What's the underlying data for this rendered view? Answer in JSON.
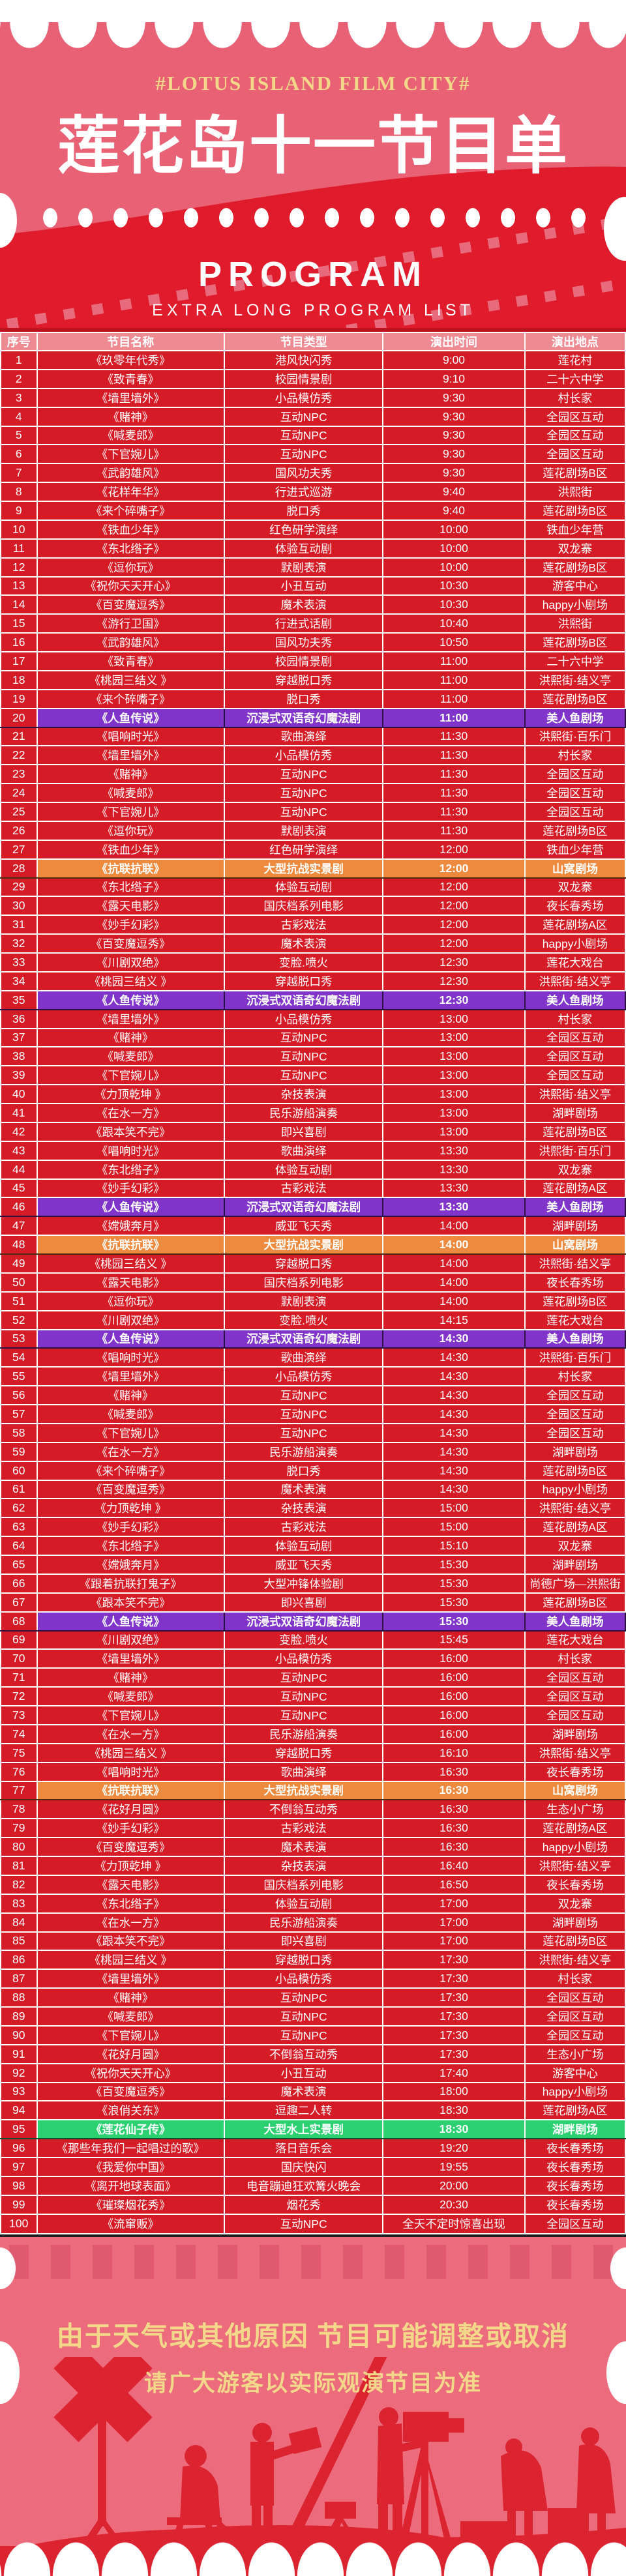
{
  "header": {
    "tagline": "#LOTUS ISLAND FILM CITY#",
    "title": "莲花岛十一节目单",
    "program_word": "PROGRAM",
    "subtitle": "EXTRA LONG PROGRAM LIST"
  },
  "table": {
    "columns": [
      "序号",
      "节目名称",
      "节目类型",
      "演出时间",
      "演出地点"
    ],
    "rows": [
      {
        "no": "1",
        "name": "《玖零年代秀》",
        "type": "港风快闪秀",
        "time": "9:00",
        "venue": "莲花村",
        "highlight": "none"
      },
      {
        "no": "2",
        "name": "《致青春》",
        "type": "校园情景剧",
        "time": "9:10",
        "venue": "二十六中学",
        "highlight": "none"
      },
      {
        "no": "3",
        "name": "《墙里墙外》",
        "type": "小品模仿秀",
        "time": "9:30",
        "venue": "村长家",
        "highlight": "none"
      },
      {
        "no": "4",
        "name": "《赌神》",
        "type": "互动NPC",
        "time": "9:30",
        "venue": "全园区互动",
        "highlight": "none"
      },
      {
        "no": "5",
        "name": "《喊麦郎》",
        "type": "互动NPC",
        "time": "9:30",
        "venue": "全园区互动",
        "highlight": "none"
      },
      {
        "no": "6",
        "name": "《下官婉儿》",
        "type": "互动NPC",
        "time": "9:30",
        "venue": "全园区互动",
        "highlight": "none"
      },
      {
        "no": "7",
        "name": "《武韵雄风》",
        "type": "国风功夫秀",
        "time": "9:30",
        "venue": "莲花剧场B区",
        "highlight": "none"
      },
      {
        "no": "8",
        "name": "《花样年华》",
        "type": "行进式巡游",
        "time": "9:40",
        "venue": "洪熙街",
        "highlight": "none"
      },
      {
        "no": "9",
        "name": "《来个碎嘴子》",
        "type": "脱口秀",
        "time": "9:40",
        "venue": "莲花剧场B区",
        "highlight": "none"
      },
      {
        "no": "10",
        "name": "《铁血少年》",
        "type": "红色研学演绎",
        "time": "10:00",
        "venue": "铁血少年营",
        "highlight": "none"
      },
      {
        "no": "11",
        "name": "《东北绺子》",
        "type": "体验互动剧",
        "time": "10:00",
        "venue": "双龙寨",
        "highlight": "none"
      },
      {
        "no": "12",
        "name": "《逗你玩》",
        "type": "默剧表演",
        "time": "10:00",
        "venue": "莲花剧场B区",
        "highlight": "none"
      },
      {
        "no": "13",
        "name": "《祝你天天开心》",
        "type": "小丑互动",
        "time": "10:30",
        "venue": "游客中心",
        "highlight": "none"
      },
      {
        "no": "14",
        "name": "《百变魔逗秀》",
        "type": "魔术表演",
        "time": "10:30",
        "venue": "happy小剧场",
        "highlight": "none"
      },
      {
        "no": "15",
        "name": "《游行卫国》",
        "type": "行进式话剧",
        "time": "10:40",
        "venue": "洪熙街",
        "highlight": "none"
      },
      {
        "no": "16",
        "name": "《武韵雄风》",
        "type": "国风功夫秀",
        "time": "10:50",
        "venue": "莲花剧场B区",
        "highlight": "none"
      },
      {
        "no": "17",
        "name": "《致青春》",
        "type": "校园情景剧",
        "time": "11:00",
        "venue": "二十六中学",
        "highlight": "none"
      },
      {
        "no": "18",
        "name": "《桃园三结义 》",
        "type": "穿越脱口秀",
        "time": "11:00",
        "venue": "洪熙街·结义亭",
        "highlight": "none"
      },
      {
        "no": "19",
        "name": "《来个碎嘴子》",
        "type": "脱口秀",
        "time": "11:00",
        "venue": "莲花剧场B区",
        "highlight": "none"
      },
      {
        "no": "20",
        "name": "《人鱼传说》",
        "type": "沉浸式双语奇幻魔法剧",
        "time": "11:00",
        "venue": "美人鱼剧场",
        "highlight": "purple"
      },
      {
        "no": "21",
        "name": "《唱响时光》",
        "type": "歌曲演绎",
        "time": "11:30",
        "venue": "洪熙街·百乐门",
        "highlight": "none"
      },
      {
        "no": "22",
        "name": "《墙里墙外》",
        "type": "小品模仿秀",
        "time": "11:30",
        "venue": "村长家",
        "highlight": "none"
      },
      {
        "no": "23",
        "name": "《赌神》",
        "type": "互动NPC",
        "time": "11:30",
        "venue": "全园区互动",
        "highlight": "none"
      },
      {
        "no": "24",
        "name": "《喊麦郎》",
        "type": "互动NPC",
        "time": "11:30",
        "venue": "全园区互动",
        "highlight": "none"
      },
      {
        "no": "25",
        "name": "《下官婉儿》",
        "type": "互动NPC",
        "time": "11:30",
        "venue": "全园区互动",
        "highlight": "none"
      },
      {
        "no": "26",
        "name": "《逗你玩》",
        "type": "默剧表演",
        "time": "11:30",
        "venue": "莲花剧场B区",
        "highlight": "none"
      },
      {
        "no": "27",
        "name": "《铁血少年》",
        "type": "红色研学演绎",
        "time": "12:00",
        "venue": "铁血少年营",
        "highlight": "none"
      },
      {
        "no": "28",
        "name": "《抗联抗联》",
        "type": "大型抗战实景剧",
        "time": "12:00",
        "venue": "山窝剧场",
        "highlight": "orange"
      },
      {
        "no": "29",
        "name": "《东北绺子》",
        "type": "体验互动剧",
        "time": "12:00",
        "venue": "双龙寨",
        "highlight": "none"
      },
      {
        "no": "30",
        "name": "《露天电影》",
        "type": "国庆档系列电影",
        "time": "12:00",
        "venue": "夜长春秀场",
        "highlight": "none"
      },
      {
        "no": "31",
        "name": "《妙手幻彩》",
        "type": "古彩戏法",
        "time": "12:00",
        "venue": "莲花剧场A区",
        "highlight": "none"
      },
      {
        "no": "32",
        "name": "《百变魔逗秀》",
        "type": "魔术表演",
        "time": "12:00",
        "venue": "happy小剧场",
        "highlight": "none"
      },
      {
        "no": "33",
        "name": "《川剧双绝》",
        "type": "变脸.喷火",
        "time": "12:30",
        "venue": "莲花大戏台",
        "highlight": "none"
      },
      {
        "no": "34",
        "name": "《桃园三结义 》",
        "type": "穿越脱口秀",
        "time": "12:30",
        "venue": "洪熙街·结义亭",
        "highlight": "none"
      },
      {
        "no": "35",
        "name": "《人鱼传说》",
        "type": "沉浸式双语奇幻魔法剧",
        "time": "12:30",
        "venue": "美人鱼剧场",
        "highlight": "purple"
      },
      {
        "no": "36",
        "name": "《墙里墙外》",
        "type": "小品模仿秀",
        "time": "13:00",
        "venue": "村长家",
        "highlight": "none"
      },
      {
        "no": "37",
        "name": "《赌神》",
        "type": "互动NPC",
        "time": "13:00",
        "venue": "全园区互动",
        "highlight": "none"
      },
      {
        "no": "38",
        "name": "《喊麦郎》",
        "type": "互动NPC",
        "time": "13:00",
        "venue": "全园区互动",
        "highlight": "none"
      },
      {
        "no": "39",
        "name": "《下官婉儿》",
        "type": "互动NPC",
        "time": "13:00",
        "venue": "全园区互动",
        "highlight": "none"
      },
      {
        "no": "40",
        "name": "《力顶乾坤 》",
        "type": "杂技表演",
        "time": "13:00",
        "venue": "洪熙街·结义亭",
        "highlight": "none"
      },
      {
        "no": "41",
        "name": "《在水一方》",
        "type": "民乐游船演奏",
        "time": "13:00",
        "venue": "湖畔剧场",
        "highlight": "none"
      },
      {
        "no": "42",
        "name": "《跟本笑不完》",
        "type": "即兴喜剧",
        "time": "13:00",
        "venue": "莲花剧场B区",
        "highlight": "none"
      },
      {
        "no": "43",
        "name": "《唱响时光》",
        "type": "歌曲演绎",
        "time": "13:30",
        "venue": "洪熙街·百乐门",
        "highlight": "none"
      },
      {
        "no": "44",
        "name": "《东北绺子》",
        "type": "体验互动剧",
        "time": "13:30",
        "venue": "双龙寨",
        "highlight": "none"
      },
      {
        "no": "45",
        "name": "《妙手幻彩》",
        "type": "古彩戏法",
        "time": "13:30",
        "venue": "莲花剧场A区",
        "highlight": "none"
      },
      {
        "no": "46",
        "name": "《人鱼传说》",
        "type": "沉浸式双语奇幻魔法剧",
        "time": "13:30",
        "venue": "美人鱼剧场",
        "highlight": "purple"
      },
      {
        "no": "47",
        "name": "《嫦娥奔月》",
        "type": "威亚飞天秀",
        "time": "14:00",
        "venue": "湖畔剧场",
        "highlight": "none"
      },
      {
        "no": "48",
        "name": "《抗联抗联》",
        "type": "大型抗战实景剧",
        "time": "14:00",
        "venue": "山窝剧场",
        "highlight": "orange"
      },
      {
        "no": "49",
        "name": "《桃园三结义 》",
        "type": "穿越脱口秀",
        "time": "14:00",
        "venue": "洪熙街·结义亭",
        "highlight": "none"
      },
      {
        "no": "50",
        "name": "《露天电影》",
        "type": "国庆档系列电影",
        "time": "14:00",
        "venue": "夜长春秀场",
        "highlight": "none"
      },
      {
        "no": "51",
        "name": "《逗你玩》",
        "type": "默剧表演",
        "time": "14:00",
        "venue": "莲花剧场B区",
        "highlight": "none"
      },
      {
        "no": "52",
        "name": "《川剧双绝》",
        "type": "变脸.喷火",
        "time": "14:15",
        "venue": "莲花大戏台",
        "highlight": "none"
      },
      {
        "no": "53",
        "name": "《人鱼传说》",
        "type": "沉浸式双语奇幻魔法剧",
        "time": "14:30",
        "venue": "美人鱼剧场",
        "highlight": "purple"
      },
      {
        "no": "54",
        "name": "《唱响时光》",
        "type": "歌曲演绎",
        "time": "14:30",
        "venue": "洪熙街·百乐门",
        "highlight": "none"
      },
      {
        "no": "55",
        "name": "《墙里墙外》",
        "type": "小品模仿秀",
        "time": "14:30",
        "venue": "村长家",
        "highlight": "none"
      },
      {
        "no": "56",
        "name": "《赌神》",
        "type": "互动NPC",
        "time": "14:30",
        "venue": "全园区互动",
        "highlight": "none"
      },
      {
        "no": "57",
        "name": "《喊麦郎》",
        "type": "互动NPC",
        "time": "14:30",
        "venue": "全园区互动",
        "highlight": "none"
      },
      {
        "no": "58",
        "name": "《下官婉儿》",
        "type": "互动NPC",
        "time": "14:30",
        "venue": "全园区互动",
        "highlight": "none"
      },
      {
        "no": "59",
        "name": "《在水一方》",
        "type": "民乐游船演奏",
        "time": "14:30",
        "venue": "湖畔剧场",
        "highlight": "none"
      },
      {
        "no": "60",
        "name": "《来个碎嘴子》",
        "type": "脱口秀",
        "time": "14:30",
        "venue": "莲花剧场B区",
        "highlight": "none"
      },
      {
        "no": "61",
        "name": "《百变魔逗秀》",
        "type": "魔术表演",
        "time": "14:30",
        "venue": "happy小剧场",
        "highlight": "none"
      },
      {
        "no": "62",
        "name": "《力顶乾坤 》",
        "type": "杂技表演",
        "time": "15:00",
        "venue": "洪熙街·结义亭",
        "highlight": "none"
      },
      {
        "no": "63",
        "name": "《妙手幻彩》",
        "type": "古彩戏法",
        "time": "15:00",
        "venue": "莲花剧场A区",
        "highlight": "none"
      },
      {
        "no": "64",
        "name": "《东北绺子》",
        "type": "体验互动剧",
        "time": "15:10",
        "venue": "双龙寨",
        "highlight": "none"
      },
      {
        "no": "65",
        "name": "《嫦娥奔月》",
        "type": "威亚飞天秀",
        "time": "15:30",
        "venue": "湖畔剧场",
        "highlight": "none"
      },
      {
        "no": "66",
        "name": "《跟着抗联打鬼子》",
        "type": "大型冲锋体验剧",
        "time": "15:30",
        "venue": "尚德广场—洪熙街",
        "highlight": "none"
      },
      {
        "no": "67",
        "name": "《跟本笑不完》",
        "type": "即兴喜剧",
        "time": "15:30",
        "venue": "莲花剧场B区",
        "highlight": "none"
      },
      {
        "no": "68",
        "name": "《人鱼传说》",
        "type": "沉浸式双语奇幻魔法剧",
        "time": "15:30",
        "venue": "美人鱼剧场",
        "highlight": "purple"
      },
      {
        "no": "69",
        "name": "《川剧双绝》",
        "type": "变脸.喷火",
        "time": "15:45",
        "venue": "莲花大戏台",
        "highlight": "none"
      },
      {
        "no": "70",
        "name": "《墙里墙外》",
        "type": "小品模仿秀",
        "time": "16:00",
        "venue": "村长家",
        "highlight": "none"
      },
      {
        "no": "71",
        "name": "《赌神》",
        "type": "互动NPC",
        "time": "16:00",
        "venue": "全园区互动",
        "highlight": "none"
      },
      {
        "no": "72",
        "name": "《喊麦郎》",
        "type": "互动NPC",
        "time": "16:00",
        "venue": "全园区互动",
        "highlight": "none"
      },
      {
        "no": "73",
        "name": "《下官婉儿》",
        "type": "互动NPC",
        "time": "16:00",
        "venue": "全园区互动",
        "highlight": "none"
      },
      {
        "no": "74",
        "name": "《在水一方》",
        "type": "民乐游船演奏",
        "time": "16:00",
        "venue": "湖畔剧场",
        "highlight": "none"
      },
      {
        "no": "75",
        "name": "《桃园三结义 》",
        "type": "穿越脱口秀",
        "time": "16:10",
        "venue": "洪熙街·结义亭",
        "highlight": "none"
      },
      {
        "no": "76",
        "name": "《唱响时光》",
        "type": "歌曲演绎",
        "time": "16:30",
        "venue": "夜长春秀场",
        "highlight": "none"
      },
      {
        "no": "77",
        "name": "《抗联抗联》",
        "type": "大型抗战实景剧",
        "time": "16:30",
        "venue": "山窝剧场",
        "highlight": "orange"
      },
      {
        "no": "78",
        "name": "《花好月圆》",
        "type": "不倒翁互动秀",
        "time": "16:30",
        "venue": "生态小广场",
        "highlight": "none"
      },
      {
        "no": "79",
        "name": "《妙手幻彩》",
        "type": "古彩戏法",
        "time": "16:30",
        "venue": "莲花剧场A区",
        "highlight": "none"
      },
      {
        "no": "80",
        "name": "《百变魔逗秀》",
        "type": "魔术表演",
        "time": "16:30",
        "venue": "happy小剧场",
        "highlight": "none"
      },
      {
        "no": "81",
        "name": "《力顶乾坤 》",
        "type": "杂技表演",
        "time": "16:40",
        "venue": "洪熙街·结义亭",
        "highlight": "none"
      },
      {
        "no": "82",
        "name": "《露天电影》",
        "type": "国庆档系列电影",
        "time": "16:50",
        "venue": "夜长春秀场",
        "highlight": "none"
      },
      {
        "no": "83",
        "name": "《东北绺子》",
        "type": "体验互动剧",
        "time": "17:00",
        "venue": "双龙寨",
        "highlight": "none"
      },
      {
        "no": "84",
        "name": "《在水一方》",
        "type": "民乐游船演奏",
        "time": "17:00",
        "venue": "湖畔剧场",
        "highlight": "none"
      },
      {
        "no": "85",
        "name": "《跟本笑不完》",
        "type": "即兴喜剧",
        "time": "17:00",
        "venue": "莲花剧场B区",
        "highlight": "none"
      },
      {
        "no": "86",
        "name": "《桃园三结义 》",
        "type": "穿越脱口秀",
        "time": "17:30",
        "venue": "洪熙街·结义亭",
        "highlight": "none"
      },
      {
        "no": "87",
        "name": "《墙里墙外》",
        "type": "小品模仿秀",
        "time": "17:30",
        "venue": "村长家",
        "highlight": "none"
      },
      {
        "no": "88",
        "name": "《赌神》",
        "type": "互动NPC",
        "time": "17:30",
        "venue": "全园区互动",
        "highlight": "none"
      },
      {
        "no": "89",
        "name": "《喊麦郎》",
        "type": "互动NPC",
        "time": "17:30",
        "venue": "全园区互动",
        "highlight": "none"
      },
      {
        "no": "90",
        "name": "《下官婉儿》",
        "type": "互动NPC",
        "time": "17:30",
        "venue": "全园区互动",
        "highlight": "none"
      },
      {
        "no": "91",
        "name": "《花好月圆》",
        "type": "不倒翁互动秀",
        "time": "17:30",
        "venue": "生态小广场",
        "highlight": "none"
      },
      {
        "no": "92",
        "name": "《祝你天天开心》",
        "type": "小丑互动",
        "time": "17:40",
        "venue": "游客中心",
        "highlight": "none"
      },
      {
        "no": "93",
        "name": "《百变魔逗秀》",
        "type": "魔术表演",
        "time": "18:00",
        "venue": "happy小剧场",
        "highlight": "none"
      },
      {
        "no": "94",
        "name": "《浪俏关东》",
        "type": "逗趣二人转",
        "time": "18:30",
        "venue": "莲花剧场A区",
        "highlight": "none"
      },
      {
        "no": "95",
        "name": "《莲花仙子传》",
        "type": "大型水上实景剧",
        "time": "18:30",
        "venue": "湖畔剧场",
        "highlight": "green"
      },
      {
        "no": "96",
        "name": "《那些年我们一起唱过的歌》",
        "type": "落日音乐会",
        "time": "19:20",
        "venue": "夜长春秀场",
        "highlight": "none"
      },
      {
        "no": "97",
        "name": "《我爱你中国》",
        "type": "国庆快闪",
        "time": "19:55",
        "venue": "夜长春秀场",
        "highlight": "none"
      },
      {
        "no": "98",
        "name": "《离开地球表面》",
        "type": "电音蹦迪狂欢篝火晚会",
        "time": "20:00",
        "venue": "夜长春秀场",
        "highlight": "none"
      },
      {
        "no": "99",
        "name": "《璀璨烟花秀》",
        "type": "烟花秀",
        "time": "20:30",
        "venue": "夜长春秀场",
        "highlight": "none"
      },
      {
        "no": "100",
        "name": "《流窜贩》",
        "type": "互动NPC",
        "time": "全天不定时惊喜出现",
        "venue": "全园区互动",
        "highlight": "none"
      }
    ]
  },
  "footer": {
    "notice_line1": "由于天气或其他原因 节目可能调整或取消",
    "notice_line2": "请广大游客以实际观演节目为准"
  },
  "colors": {
    "hero_pink": "#e86175",
    "table_red": "#d51b25",
    "header_row_pink": "#ee8a92",
    "highlight_purple": "#8134c9",
    "highlight_orange": "#ee8a3d",
    "highlight_green": "#2bd170",
    "accent_yellow": "#f2d888",
    "footer_pink": "#ec6b7d",
    "silhouette_red": "#dc2330"
  }
}
